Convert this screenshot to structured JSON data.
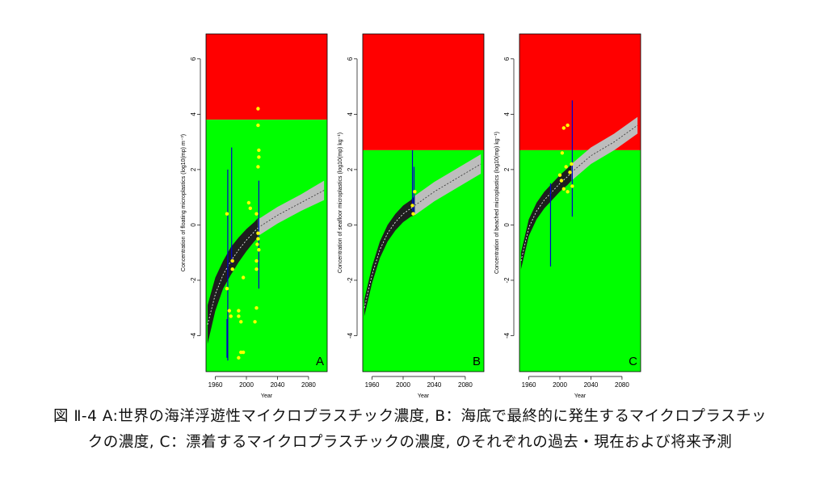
{
  "chart_data": [
    {
      "type": "line",
      "panel_label": "A",
      "x_label": "Year",
      "y_label": "Concentration of floating microplastics  (log10(mp)  m⁻³)",
      "xlim": [
        1948,
        2104
      ],
      "ylim": [
        -5.3,
        6.9
      ],
      "xticks": [
        1960,
        2000,
        2040,
        2080
      ],
      "yticks": [
        -4,
        -2,
        0,
        2,
        4,
        6
      ],
      "threshold": 3.8,
      "colors": {
        "above": "#ff0000",
        "below": "#00ff00",
        "points": "#ffff00",
        "ranges": "#0000cc",
        "fit": "#1e1e1e",
        "projection": "#bdbdbd",
        "median": "#ffffff"
      },
      "fit": {
        "x": [
          1950,
          1960,
          1970,
          1980,
          1990,
          2000,
          2010,
          2015
        ],
        "mid": [
          -3.6,
          -2.5,
          -1.8,
          -1.3,
          -0.9,
          -0.55,
          -0.25,
          -0.1
        ],
        "low": [
          -4.3,
          -3.1,
          -2.3,
          -1.8,
          -1.35,
          -0.95,
          -0.6,
          -0.45
        ],
        "high": [
          -2.9,
          -1.9,
          -1.3,
          -0.8,
          -0.45,
          -0.15,
          0.1,
          0.25
        ]
      },
      "projection": {
        "x": [
          2015,
          2040,
          2070,
          2100
        ],
        "mid": [
          -0.1,
          0.35,
          0.8,
          1.25
        ],
        "low": [
          -0.4,
          0.05,
          0.5,
          0.9
        ],
        "high": [
          0.2,
          0.65,
          1.1,
          1.6
        ]
      },
      "points": {
        "x": [
          2015,
          2015,
          2016,
          2016,
          2015,
          2003,
          2005,
          2013,
          1975,
          2015,
          2015,
          2014,
          2016,
          2013,
          2013,
          1982,
          1982,
          1996,
          1975,
          1978,
          1980,
          1990,
          1990,
          1993,
          2011,
          2013,
          1993,
          1996,
          1990
        ],
        "y": [
          4.2,
          3.6,
          2.7,
          2.45,
          2.1,
          0.8,
          0.6,
          0.4,
          0.4,
          -0.3,
          -0.5,
          -0.7,
          -0.9,
          -1.3,
          -1.6,
          -1.3,
          -1.6,
          -1.9,
          -2.3,
          -3.1,
          -3.3,
          -3.1,
          -3.3,
          -3.5,
          -3.5,
          -3.0,
          -4.6,
          -4.6,
          -4.8
        ]
      },
      "ranges": {
        "x": [
          1976,
          1981,
          2016,
          1975
        ],
        "low": [
          -4.9,
          -1.4,
          -2.3,
          -4.8
        ],
        "high": [
          2.0,
          2.8,
          1.6,
          -3.4
        ]
      }
    },
    {
      "type": "line",
      "panel_label": "B",
      "x_label": "Year",
      "y_label": "Concentration of seafloor microplastics  (log10(mp)  kg⁻¹)",
      "xlim": [
        1948,
        2104
      ],
      "ylim": [
        -5.3,
        6.9
      ],
      "xticks": [
        1960,
        2000,
        2040,
        2080
      ],
      "yticks": [
        -4,
        -2,
        0,
        2,
        4,
        6
      ],
      "threshold": 2.7,
      "colors": {
        "above": "#ff0000",
        "below": "#00ff00",
        "points": "#ffff00",
        "ranges": "#0000cc",
        "fit": "#1e1e1e",
        "projection": "#bdbdbd",
        "median": "#ffffff"
      },
      "fit": {
        "x": [
          1950,
          1960,
          1970,
          1980,
          1990,
          2000,
          2010,
          2015
        ],
        "mid": [
          -3.0,
          -1.8,
          -0.9,
          -0.3,
          0.1,
          0.4,
          0.6,
          0.7
        ],
        "low": [
          -3.3,
          -2.1,
          -1.2,
          -0.6,
          -0.2,
          0.1,
          0.3,
          0.35
        ],
        "high": [
          -2.7,
          -1.5,
          -0.6,
          0,
          0.4,
          0.7,
          0.9,
          1.05
        ]
      },
      "projection": {
        "x": [
          2015,
          2040,
          2070,
          2100
        ],
        "mid": [
          0.7,
          1.2,
          1.7,
          2.2
        ],
        "low": [
          0.35,
          0.85,
          1.35,
          1.85
        ],
        "high": [
          1.05,
          1.55,
          2.05,
          2.55
        ]
      },
      "points": {
        "x": [
          2015,
          2013,
          2012
        ],
        "y": [
          1.2,
          0.4,
          0.7
        ]
      },
      "ranges": {
        "x": [
          2012,
          2014
        ],
        "low": [
          0.5,
          0.4
        ],
        "high": [
          2.7,
          2.1
        ]
      }
    },
    {
      "type": "line",
      "panel_label": "C",
      "x_label": "Year",
      "y_label": "Concentration of beached microplastics  (log10(mp)  kg⁻¹)",
      "xlim": [
        1948,
        2104
      ],
      "ylim": [
        -5.3,
        6.9
      ],
      "xticks": [
        1960,
        2000,
        2040,
        2080
      ],
      "yticks": [
        -4,
        -2,
        0,
        2,
        4,
        6
      ],
      "threshold": 2.7,
      "colors": {
        "above": "#ff0000",
        "below": "#00ff00",
        "points": "#ffff00",
        "ranges": "#0000cc",
        "fit": "#1e1e1e",
        "projection": "#bdbdbd",
        "median": "#ffffff"
      },
      "fit": {
        "x": [
          1950,
          1960,
          1970,
          1980,
          1990,
          2000,
          2010,
          2015
        ],
        "mid": [
          -1.3,
          -0.1,
          0.5,
          0.9,
          1.2,
          1.5,
          1.75,
          1.9
        ],
        "low": [
          -1.6,
          -0.4,
          0.2,
          0.6,
          0.9,
          1.2,
          1.45,
          1.6
        ],
        "high": [
          -1.0,
          0.2,
          0.8,
          1.2,
          1.5,
          1.8,
          2.05,
          2.2
        ]
      },
      "projection": {
        "x": [
          2015,
          2040,
          2070,
          2100
        ],
        "mid": [
          1.9,
          2.5,
          3.0,
          3.6
        ],
        "low": [
          1.6,
          2.2,
          2.7,
          3.3
        ],
        "high": [
          2.2,
          2.8,
          3.3,
          3.9
        ]
      },
      "points": {
        "x": [
          2005,
          2010,
          2003,
          2008,
          2013,
          2002,
          2005,
          2010,
          2016,
          2015,
          2000
        ],
        "y": [
          3.5,
          3.6,
          2.6,
          2.1,
          1.9,
          1.6,
          1.3,
          1.2,
          1.4,
          2.2,
          1.8
        ]
      },
      "ranges": {
        "x": [
          2016,
          1988
        ],
        "low": [
          0.3,
          -1.5
        ],
        "high": [
          4.5,
          1.5
        ]
      }
    }
  ],
  "caption": "図 Ⅱ-4 A:世界の海洋浮遊性マイクロプラスチック濃度, B：海底で最終的に発生するマイクロプラスチックの濃度, C：漂着するマイクロプラスチックの濃度, のそれぞれの過去・現在および将来予測"
}
